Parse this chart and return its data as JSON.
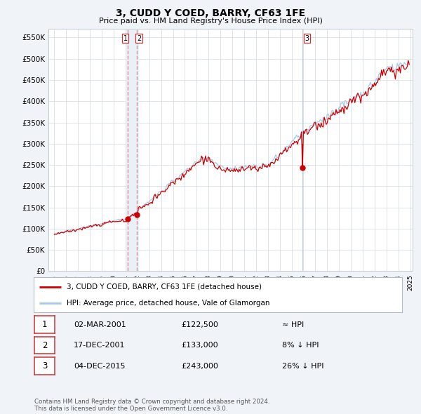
{
  "title": "3, CUDD Y COED, BARRY, CF63 1FE",
  "subtitle": "Price paid vs. HM Land Registry's House Price Index (HPI)",
  "ylim": [
    0,
    570000
  ],
  "yticks": [
    0,
    50000,
    100000,
    150000,
    200000,
    250000,
    300000,
    350000,
    400000,
    450000,
    500000,
    550000
  ],
  "ytick_labels": [
    "£0",
    "£50K",
    "£100K",
    "£150K",
    "£200K",
    "£250K",
    "£300K",
    "£350K",
    "£400K",
    "£450K",
    "£500K",
    "£550K"
  ],
  "hpi_color": "#a8c8e8",
  "price_color": "#cc0000",
  "vline_color": "#e08080",
  "vband_color": "#e8f0f8",
  "background_color": "#f0f4f8",
  "grid_color": "#d0d8e0",
  "sale1_date": 2001.17,
  "sale1_price": 122500,
  "sale2_date": 2001.96,
  "sale2_price": 133000,
  "sale3_date": 2015.92,
  "sale3_price": 243000,
  "legend_price": "3, CUDD Y COED, BARRY, CF63 1FE (detached house)",
  "legend_hpi": "HPI: Average price, detached house, Vale of Glamorgan",
  "table_rows": [
    {
      "num": "1",
      "date": "02-MAR-2001",
      "price": "£122,500",
      "rel": "≈ HPI"
    },
    {
      "num": "2",
      "date": "17-DEC-2001",
      "price": "£133,000",
      "rel": "8% ↓ HPI"
    },
    {
      "num": "3",
      "date": "04-DEC-2015",
      "price": "£243,000",
      "rel": "26% ↓ HPI"
    }
  ],
  "footnote": "Contains HM Land Registry data © Crown copyright and database right 2024.\nThis data is licensed under the Open Government Licence v3.0.",
  "x_start_year": 1995,
  "x_end_year": 2025
}
